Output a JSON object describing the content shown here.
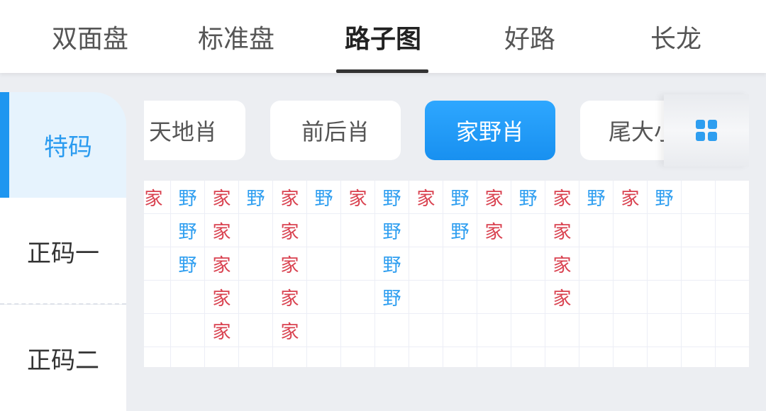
{
  "tabs": [
    {
      "label": "双面盘"
    },
    {
      "label": "标准盘"
    },
    {
      "label": "路子图",
      "active": true
    },
    {
      "label": "好路"
    },
    {
      "label": "长龙"
    }
  ],
  "sidebar": {
    "items": [
      {
        "label": "特码",
        "active": true
      },
      {
        "label": "正码一"
      },
      {
        "label": "正码二"
      }
    ]
  },
  "filters": [
    {
      "label": "天地肖"
    },
    {
      "label": "前后肖"
    },
    {
      "label": "家野肖",
      "active": true
    },
    {
      "label": "尾大小"
    }
  ],
  "grid_button": {
    "icon": "grid-icon"
  },
  "colors": {
    "accent": "#1e96f0",
    "jia": "#d9414f",
    "ye": "#2e9ef0"
  },
  "road": {
    "columns": [
      [
        "家"
      ],
      [
        "野",
        "野",
        "野"
      ],
      [
        "家",
        "家",
        "家",
        "家",
        "家"
      ],
      [
        "野"
      ],
      [
        "家",
        "家",
        "家",
        "家",
        "家"
      ],
      [
        "野"
      ],
      [
        "家"
      ],
      [
        "野",
        "野",
        "野",
        "野"
      ],
      [
        "家"
      ],
      [
        "野",
        "野"
      ],
      [
        "家",
        "家"
      ],
      [
        "野"
      ],
      [
        "家",
        "家",
        "家",
        "家"
      ],
      [
        "野"
      ],
      [
        "家"
      ],
      [
        "野"
      ],
      [],
      []
    ]
  }
}
